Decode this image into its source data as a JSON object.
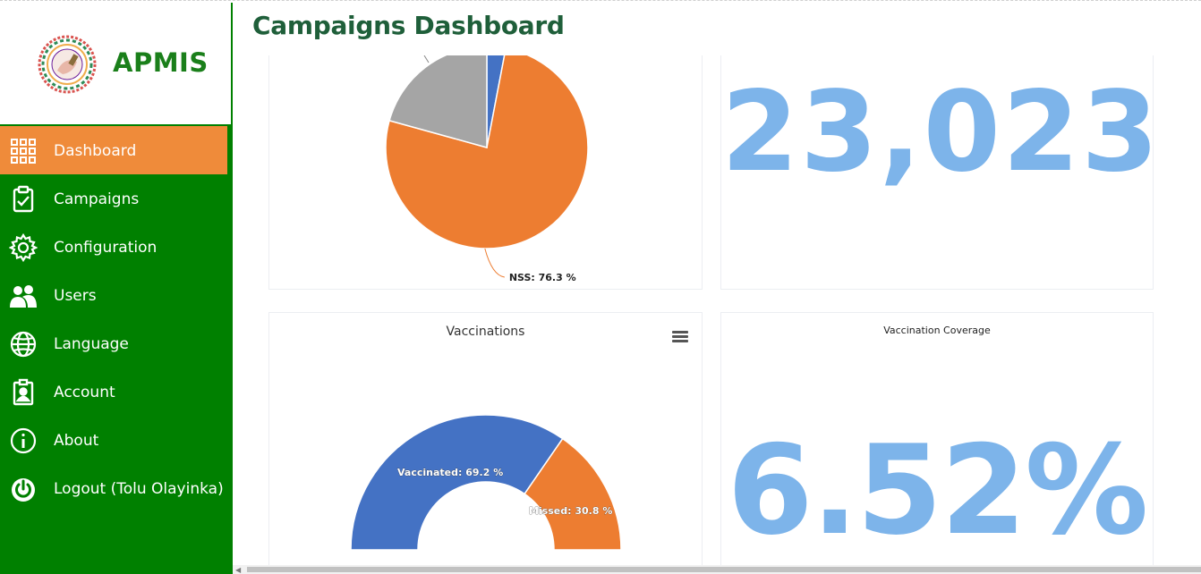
{
  "app": {
    "name": "APMIS",
    "page_title": "Campaigns Dashboard"
  },
  "sidebar": {
    "items": [
      {
        "label": "Dashboard",
        "icon": "grid-icon",
        "active": true
      },
      {
        "label": "Campaigns",
        "icon": "clipboard-check-icon",
        "active": false
      },
      {
        "label": "Configuration",
        "icon": "gear-icon",
        "active": false
      },
      {
        "label": "Users",
        "icon": "users-icon",
        "active": false
      },
      {
        "label": "Language",
        "icon": "globe-icon",
        "active": false
      },
      {
        "label": "Account",
        "icon": "id-badge-icon",
        "active": false
      },
      {
        "label": "About",
        "icon": "info-icon",
        "active": false
      },
      {
        "label": "Logout (Tolu Olayinka)",
        "icon": "power-icon",
        "active": false
      }
    ]
  },
  "cards": {
    "total_number": "23,023",
    "vaccinations_title": "Vaccinations",
    "coverage_title": "Vaccination Coverage",
    "coverage_value": "6.52%"
  },
  "chart_data": [
    {
      "type": "pie",
      "title": "",
      "slices": [
        {
          "label": "NSS",
          "value": 76.3,
          "color": "#ed7d31"
        },
        {
          "label": "",
          "value": 3.0,
          "color": "#4472c4"
        },
        {
          "label": "",
          "value": 20.7,
          "color": "#a5a5a5"
        }
      ],
      "visible_labels": [
        "NSS: 76.3 %"
      ]
    },
    {
      "type": "pie",
      "subtype": "semicircle-donut",
      "title": "Vaccinations",
      "slices": [
        {
          "label": "Vaccinated",
          "value": 69.2,
          "color": "#4472c4"
        },
        {
          "label": "Missed",
          "value": 30.8,
          "color": "#ed7d31"
        }
      ],
      "visible_labels": [
        "Vaccinated: 69.2 %",
        "Missed: 30.8 %"
      ]
    }
  ],
  "colors": {
    "sidebar_bg": "#008000",
    "active_item": "#ef8b3a",
    "big_number": "#7db4ea"
  }
}
